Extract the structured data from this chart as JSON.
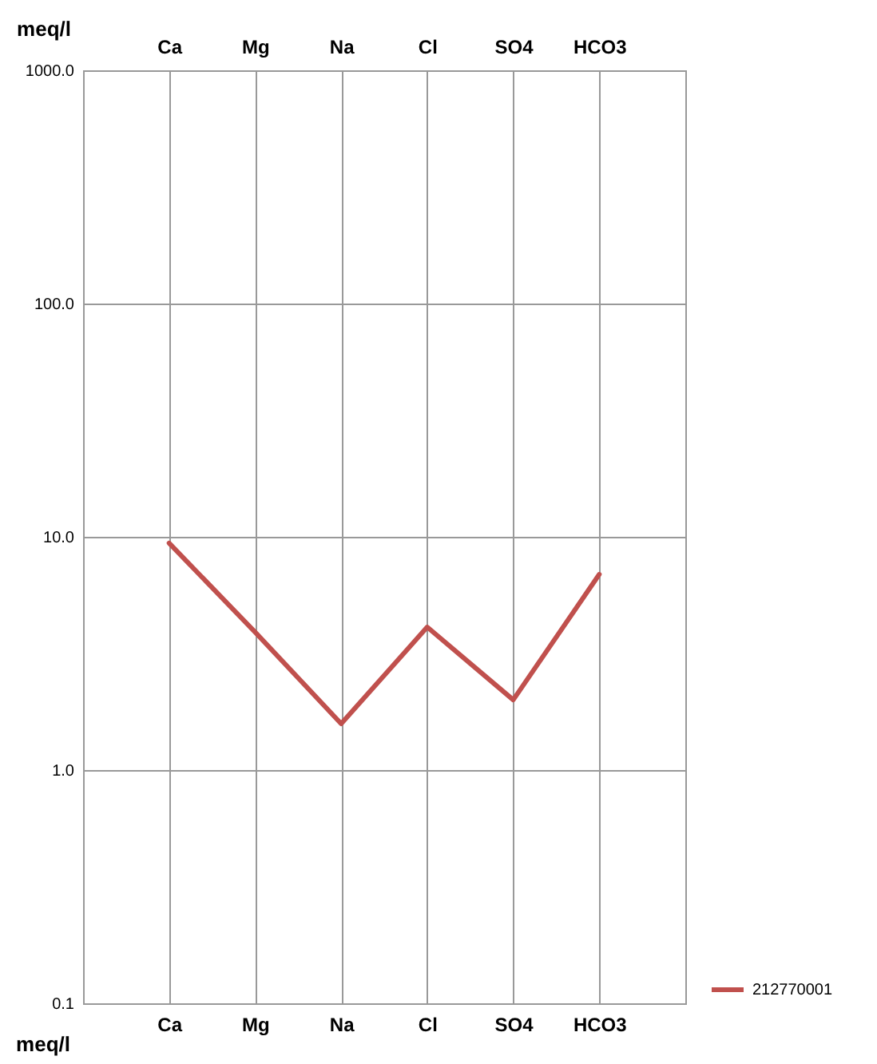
{
  "chart_data": {
    "type": "line",
    "ylabel": "meq/l",
    "categories": [
      "Ca",
      "Mg",
      "Na",
      "Cl",
      "SO4",
      "HCO3"
    ],
    "series": [
      {
        "name": "212770001",
        "color": "#c0504d",
        "values": [
          9.4,
          3.9,
          1.58,
          4.1,
          2.0,
          6.9
        ]
      }
    ],
    "log": "y",
    "ylim": [
      0.1,
      1000
    ],
    "yticks": [
      0.1,
      {
        "value": 1,
        "label": "1.0"
      },
      {
        "value": 10,
        "label": "10.0"
      },
      {
        "value": 100,
        "label": "100.0"
      },
      {
        "value": 1000,
        "label": "1000.0"
      }
    ],
    "grid": true,
    "legend": "bottom right",
    "marker": "none",
    "line_style": "solid"
  }
}
